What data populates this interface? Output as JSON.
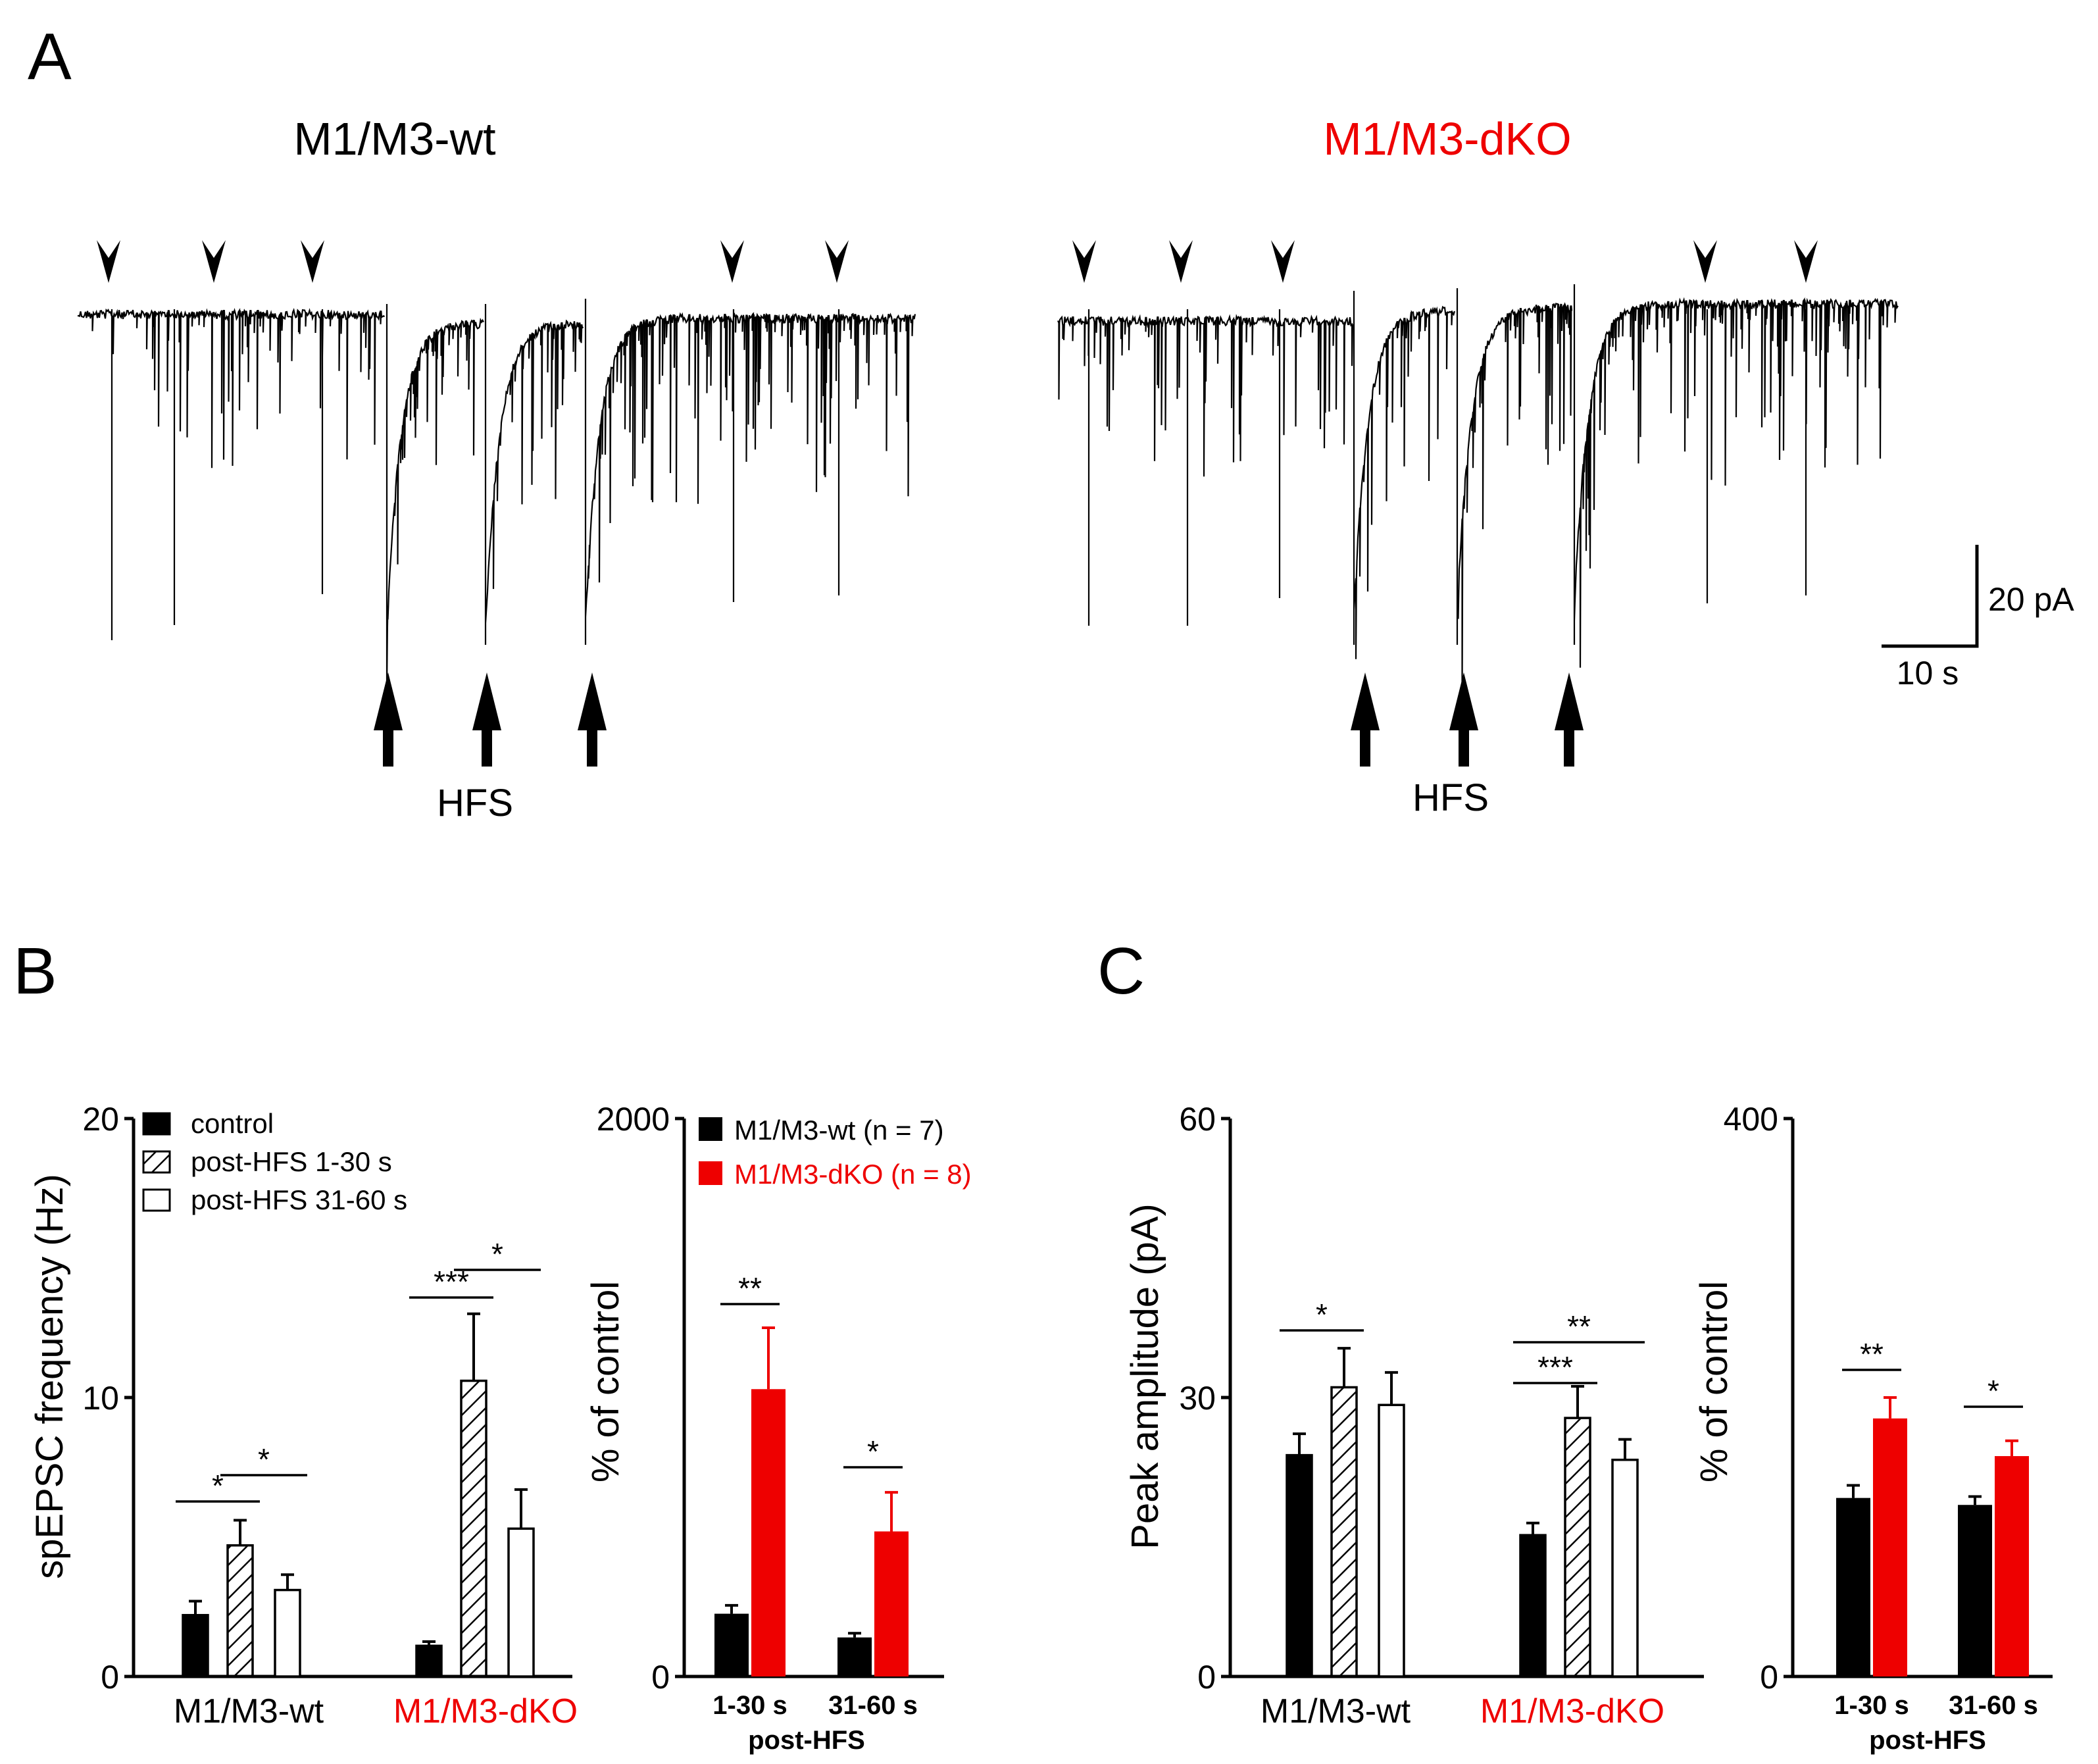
{
  "colors": {
    "wt": "#000000",
    "dko": "#ee0000",
    "text": "#000000"
  },
  "panel_a": {
    "letter": "A",
    "wt_title": "M1/M3-wt",
    "dko_title": "M1/M3-dKO",
    "stim_label": "HFS",
    "scale_y_label": "20 pA",
    "scale_x_label": "10 s"
  },
  "panel_b": {
    "letter": "B"
  },
  "panel_c": {
    "letter": "C"
  },
  "chart_data": [
    {
      "id": "b1",
      "type": "bar",
      "ylabel": "spEPSC frequency (Hz)",
      "ylim": [
        0,
        20
      ],
      "yticks": [
        "0",
        "10",
        "20"
      ],
      "groups": [
        "M1/M3-wt",
        "M1/M3-dKO"
      ],
      "series": [
        {
          "name": "control",
          "pattern": "solid",
          "values": [
            2.2,
            1.1
          ],
          "errors": [
            0.5,
            0.15
          ]
        },
        {
          "name": "post-HFS 1-30 s",
          "pattern": "hatched",
          "values": [
            4.7,
            10.6
          ],
          "errors": [
            0.9,
            2.4
          ]
        },
        {
          "name": "post-HFS 31-60 s",
          "pattern": "open",
          "values": [
            3.1,
            5.3
          ],
          "errors": [
            0.55,
            1.4
          ]
        }
      ],
      "legend": [
        "control",
        "post-HFS 1-30 s",
        "post-HFS 31-60 s"
      ],
      "significance": [
        {
          "label": "*",
          "group": 0,
          "from": 0,
          "to": 1
        },
        {
          "label": "*",
          "group": 0,
          "from": 1,
          "to": 2
        },
        {
          "label": "***",
          "group": 1,
          "from": 0,
          "to": 1
        },
        {
          "label": "*",
          "group": 1,
          "from": 1,
          "to": 2
        }
      ]
    },
    {
      "id": "b2",
      "type": "bar",
      "ylabel": "% of control",
      "ylim": [
        0,
        2000
      ],
      "yticks": [
        "0",
        "2000"
      ],
      "categories": [
        "1-30 s",
        "31-60 s"
      ],
      "xlabel": "post-HFS",
      "series": [
        {
          "name": "M1/M3-wt (n = 7)",
          "values": [
            225,
            140
          ],
          "errors": [
            30,
            15
          ]
        },
        {
          "name": "M1/M3-dKO (n = 8)",
          "values": [
            1030,
            520
          ],
          "errors": [
            220,
            140
          ]
        }
      ],
      "significance": [
        {
          "label": "**",
          "category": 0
        },
        {
          "label": "*",
          "category": 1
        }
      ]
    },
    {
      "id": "c1",
      "type": "bar",
      "ylabel": "Peak amplitude (pA)",
      "ylim": [
        0,
        60
      ],
      "yticks": [
        "0",
        "30",
        "60"
      ],
      "groups": [
        "M1/M3-wt",
        "M1/M3-dKO"
      ],
      "series": [
        {
          "name": "control",
          "pattern": "solid",
          "values": [
            23.8,
            15.2
          ],
          "errors": [
            2.3,
            1.3
          ]
        },
        {
          "name": "post-HFS 1-30 s",
          "pattern": "hatched",
          "values": [
            31.1,
            27.8
          ],
          "errors": [
            4.2,
            3.4
          ]
        },
        {
          "name": "post-HFS 31-60 s",
          "pattern": "open",
          "values": [
            29.2,
            23.3
          ],
          "errors": [
            3.5,
            2.2
          ]
        }
      ],
      "significance": [
        {
          "label": "*",
          "group": 0,
          "from": 0,
          "to": 1
        },
        {
          "label": "***",
          "group": 1,
          "from": 0,
          "to": 1
        },
        {
          "label": "**",
          "group": 1,
          "from": 0,
          "to": 2
        }
      ]
    },
    {
      "id": "c2",
      "type": "bar",
      "ylabel": "% of control",
      "ylim": [
        0,
        400
      ],
      "yticks": [
        "0",
        "400"
      ],
      "categories": [
        "1-30 s",
        "31-60 s"
      ],
      "xlabel": "post-HFS",
      "series": [
        {
          "name": "M1/M3-wt",
          "values": [
            128,
            123
          ],
          "errors": [
            9,
            6
          ]
        },
        {
          "name": "M1/M3-dKO",
          "values": [
            185,
            158
          ],
          "errors": [
            15,
            11
          ]
        }
      ],
      "significance": [
        {
          "label": "**",
          "category": 0
        },
        {
          "label": "*",
          "category": 1
        }
      ]
    }
  ]
}
